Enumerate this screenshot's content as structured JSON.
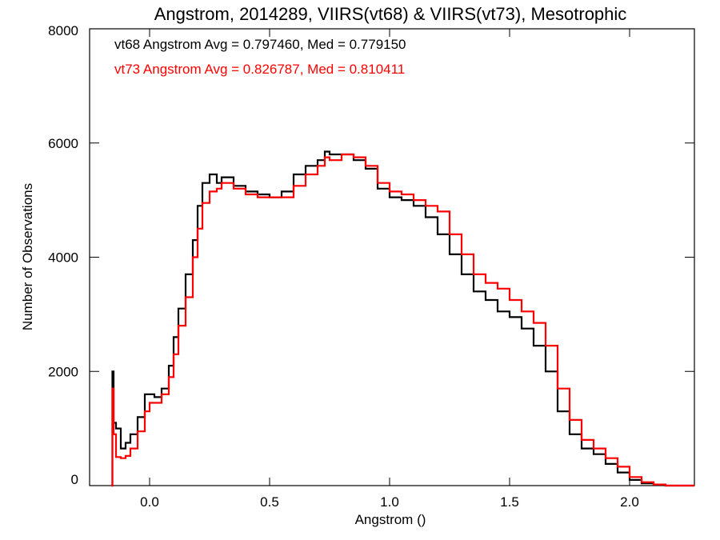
{
  "chart_data": {
    "type": "line",
    "title": "Angstrom, 2014289, VIIRS(vt68) & VIIRS(vt73), Mesotrophic",
    "xlabel": "Angstrom ()",
    "ylabel": "Number of Observations",
    "xlim": [
      -0.25,
      2.27
    ],
    "ylim": [
      0,
      8000
    ],
    "x_ticks": [
      0.0,
      0.5,
      1.0,
      1.5,
      2.0
    ],
    "x_tick_labels": [
      "0.0",
      "0.5",
      "1.0",
      "1.5",
      "2.0"
    ],
    "y_ticks": [
      0,
      2000,
      4000,
      6000,
      8000
    ],
    "y_tick_labels": [
      "0",
      "2000",
      "4000",
      "6000",
      "8000"
    ],
    "annotations": [
      "vt68 Angstrom Avg = 0.797460, Med = 0.779150",
      "vt73 Angstrom Avg = 0.826787, Med = 0.810411"
    ],
    "series": [
      {
        "color": "#000000",
        "x": [
          -0.16,
          -0.155,
          -0.15,
          -0.14,
          -0.12,
          -0.1,
          -0.08,
          -0.05,
          -0.02,
          0.0,
          0.02,
          0.05,
          0.08,
          0.1,
          0.12,
          0.15,
          0.18,
          0.2,
          0.22,
          0.25,
          0.28,
          0.3,
          0.35,
          0.4,
          0.45,
          0.5,
          0.55,
          0.6,
          0.65,
          0.7,
          0.73,
          0.75,
          0.8,
          0.85,
          0.9,
          0.95,
          1.0,
          1.05,
          1.1,
          1.15,
          1.2,
          1.25,
          1.3,
          1.35,
          1.4,
          1.45,
          1.5,
          1.55,
          1.6,
          1.65,
          1.7,
          1.75,
          1.8,
          1.85,
          1.9,
          1.95,
          2.0,
          2.05,
          2.1,
          2.15,
          2.27
        ],
        "y": [
          0,
          2000,
          1100,
          1000,
          650,
          750,
          900,
          1200,
          1600,
          1600,
          1550,
          1700,
          2100,
          2600,
          3100,
          3700,
          4300,
          4900,
          5300,
          5450,
          5300,
          5400,
          5250,
          5150,
          5100,
          5050,
          5150,
          5450,
          5600,
          5700,
          5850,
          5800,
          5800,
          5700,
          5550,
          5200,
          5050,
          5000,
          4900,
          4700,
          4400,
          4050,
          3700,
          3400,
          3250,
          3050,
          2950,
          2750,
          2450,
          2000,
          1300,
          900,
          650,
          550,
          380,
          230,
          100,
          40,
          10,
          0,
          0
        ]
      },
      {
        "color": "#ff0000",
        "x": [
          -0.16,
          -0.155,
          -0.15,
          -0.14,
          -0.12,
          -0.1,
          -0.08,
          -0.05,
          -0.02,
          0.0,
          0.02,
          0.05,
          0.08,
          0.1,
          0.12,
          0.15,
          0.18,
          0.2,
          0.22,
          0.25,
          0.28,
          0.3,
          0.35,
          0.4,
          0.45,
          0.5,
          0.55,
          0.6,
          0.65,
          0.7,
          0.73,
          0.75,
          0.8,
          0.85,
          0.9,
          0.95,
          1.0,
          1.05,
          1.1,
          1.15,
          1.2,
          1.25,
          1.3,
          1.35,
          1.4,
          1.45,
          1.5,
          1.55,
          1.6,
          1.65,
          1.7,
          1.75,
          1.8,
          1.85,
          1.9,
          1.95,
          2.0,
          2.05,
          2.1,
          2.15,
          2.27
        ],
        "y": [
          0,
          1700,
          900,
          500,
          480,
          520,
          650,
          950,
          1300,
          1450,
          1450,
          1600,
          1900,
          2300,
          2800,
          3300,
          4000,
          4500,
          4950,
          5150,
          5200,
          5300,
          5200,
          5100,
          5050,
          5050,
          5050,
          5250,
          5450,
          5600,
          5750,
          5700,
          5800,
          5750,
          5600,
          5300,
          5150,
          5100,
          5000,
          4900,
          4800,
          4400,
          4050,
          3700,
          3550,
          3450,
          3250,
          3050,
          2850,
          2450,
          1700,
          1150,
          800,
          650,
          480,
          330,
          150,
          60,
          20,
          0,
          0
        ]
      }
    ]
  }
}
